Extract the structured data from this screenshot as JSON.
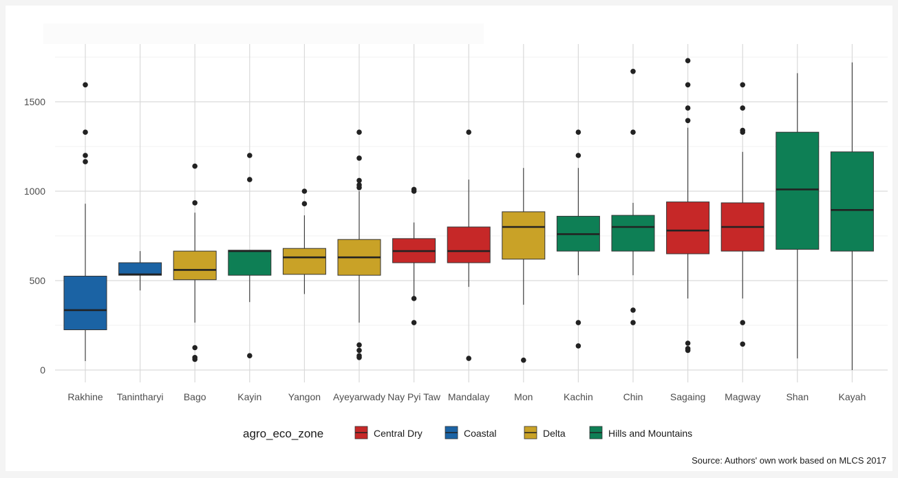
{
  "chart_data": {
    "type": "box",
    "ylim": [
      -60,
      1780
    ],
    "y_ticks": [
      0,
      500,
      1000,
      1500
    ],
    "grid": true,
    "legend": {
      "title": "agro_eco_zone",
      "position": "bottom",
      "entries": [
        {
          "name": "Central Dry",
          "color": "#c62828"
        },
        {
          "name": "Coastal",
          "color": "#1b63a4"
        },
        {
          "name": "Delta",
          "color": "#c9a227"
        },
        {
          "name": "Hills and Mountains",
          "color": "#0e7f55"
        }
      ]
    },
    "source": "Source: Authors' own work based on MLCS 2017",
    "boxes": [
      {
        "category": "Rakhine",
        "zone": "Coastal",
        "wmin": 50,
        "q1": 225,
        "median": 335,
        "q3": 525,
        "wmax": 930,
        "outliers": [
          1165,
          1200,
          1330,
          1595
        ]
      },
      {
        "category": "Tanintharyi",
        "zone": "Coastal",
        "wmin": 445,
        "q1": 530,
        "median": 535,
        "q3": 600,
        "wmax": 665,
        "outliers": []
      },
      {
        "category": "Bago",
        "zone": "Delta",
        "wmin": 265,
        "q1": 505,
        "median": 560,
        "q3": 665,
        "wmax": 880,
        "outliers": [
          60,
          70,
          125,
          935,
          1140
        ]
      },
      {
        "category": "Kayin",
        "zone": "Hills and Mountains",
        "wmin": 380,
        "q1": 530,
        "median": 665,
        "q3": 670,
        "wmax": 670,
        "outliers": [
          80,
          1065,
          1200
        ]
      },
      {
        "category": "Yangon",
        "zone": "Delta",
        "wmin": 425,
        "q1": 535,
        "median": 630,
        "q3": 680,
        "wmax": 865,
        "outliers": [
          930,
          1000
        ]
      },
      {
        "category": "Ayeyarwady",
        "zone": "Delta",
        "wmin": 265,
        "q1": 530,
        "median": 630,
        "q3": 730,
        "wmax": 1000,
        "outliers": [
          70,
          80,
          110,
          140,
          1020,
          1035,
          1060,
          1185,
          1330
        ]
      },
      {
        "category": "Nay Pyi Taw",
        "zone": "Central Dry",
        "wmin": 400,
        "q1": 600,
        "median": 665,
        "q3": 735,
        "wmax": 825,
        "outliers": [
          265,
          400,
          1000,
          1010
        ]
      },
      {
        "category": "Mandalay",
        "zone": "Central Dry",
        "wmin": 465,
        "q1": 600,
        "median": 665,
        "q3": 800,
        "wmax": 1065,
        "outliers": [
          65,
          1330
        ]
      },
      {
        "category": "Mon",
        "zone": "Delta",
        "wmin": 365,
        "q1": 620,
        "median": 800,
        "q3": 885,
        "wmax": 1130,
        "outliers": [
          55
        ]
      },
      {
        "category": "Kachin",
        "zone": "Hills and Mountains",
        "wmin": 530,
        "q1": 665,
        "median": 760,
        "q3": 860,
        "wmax": 1130,
        "outliers": [
          135,
          265,
          1200,
          1330
        ]
      },
      {
        "category": "Chin",
        "zone": "Hills and Mountains",
        "wmin": 530,
        "q1": 665,
        "median": 800,
        "q3": 865,
        "wmax": 935,
        "outliers": [
          265,
          335,
          1330,
          1670
        ]
      },
      {
        "category": "Sagaing",
        "zone": "Central Dry",
        "wmin": 400,
        "q1": 650,
        "median": 780,
        "q3": 940,
        "wmax": 1355,
        "outliers": [
          110,
          120,
          150,
          1395,
          1465,
          1595,
          1730
        ]
      },
      {
        "category": "Magway",
        "zone": "Central Dry",
        "wmin": 400,
        "q1": 665,
        "median": 800,
        "q3": 935,
        "wmax": 1220,
        "outliers": [
          145,
          265,
          1330,
          1340,
          1465,
          1595
        ]
      },
      {
        "category": "Shan",
        "zone": "Hills and Mountains",
        "wmin": 65,
        "q1": 675,
        "median": 1010,
        "q3": 1330,
        "wmax": 1660,
        "outliers": []
      },
      {
        "category": "Kayah",
        "zone": "Hills and Mountains",
        "wmin": 0,
        "q1": 665,
        "median": 895,
        "q3": 1220,
        "wmax": 1720,
        "outliers": []
      }
    ]
  }
}
